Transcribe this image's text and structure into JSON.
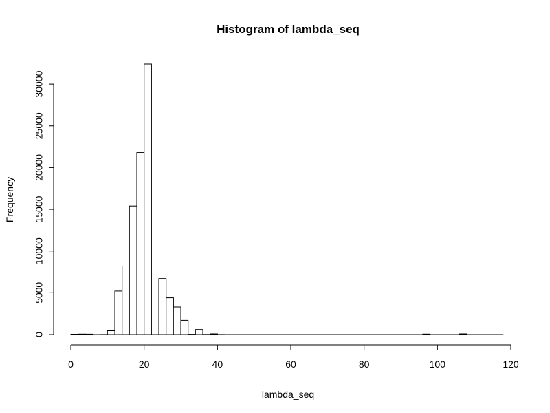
{
  "chart_data": {
    "type": "bar",
    "title": "Histogram of lambda_seq",
    "xlabel": "lambda_seq",
    "ylabel": "Frequency",
    "xlim": [
      0,
      120
    ],
    "ylim": [
      0,
      32500
    ],
    "x_ticks": [
      "0",
      "20",
      "40",
      "60",
      "80",
      "100",
      "120"
    ],
    "y_ticks": [
      "0",
      "5000",
      "10000",
      "15000",
      "20000",
      "25000",
      "30000"
    ],
    "bin_width": 2,
    "bins": [
      {
        "x0": 0,
        "x1": 2,
        "count": 40
      },
      {
        "x0": 2,
        "x1": 4,
        "count": 60
      },
      {
        "x0": 4,
        "x1": 6,
        "count": 50
      },
      {
        "x0": 6,
        "x1": 8,
        "count": 0
      },
      {
        "x0": 8,
        "x1": 10,
        "count": 10
      },
      {
        "x0": 10,
        "x1": 12,
        "count": 450
      },
      {
        "x0": 12,
        "x1": 14,
        "count": 5200
      },
      {
        "x0": 14,
        "x1": 16,
        "count": 8200
      },
      {
        "x0": 16,
        "x1": 18,
        "count": 15400
      },
      {
        "x0": 18,
        "x1": 20,
        "count": 21800
      },
      {
        "x0": 20,
        "x1": 22,
        "count": 32400
      },
      {
        "x0": 22,
        "x1": 24,
        "count": 0
      },
      {
        "x0": 24,
        "x1": 26,
        "count": 6700
      },
      {
        "x0": 26,
        "x1": 28,
        "count": 4400
      },
      {
        "x0": 28,
        "x1": 30,
        "count": 3300
      },
      {
        "x0": 30,
        "x1": 32,
        "count": 1700
      },
      {
        "x0": 32,
        "x1": 34,
        "count": 30
      },
      {
        "x0": 34,
        "x1": 36,
        "count": 600
      },
      {
        "x0": 36,
        "x1": 38,
        "count": 20
      },
      {
        "x0": 38,
        "x1": 40,
        "count": 80
      },
      {
        "x0": 40,
        "x1": 42,
        "count": 10
      },
      {
        "x0": 96,
        "x1": 98,
        "count": 60
      },
      {
        "x0": 106,
        "x1": 108,
        "count": 80
      }
    ],
    "grid": false,
    "legend": "none"
  }
}
